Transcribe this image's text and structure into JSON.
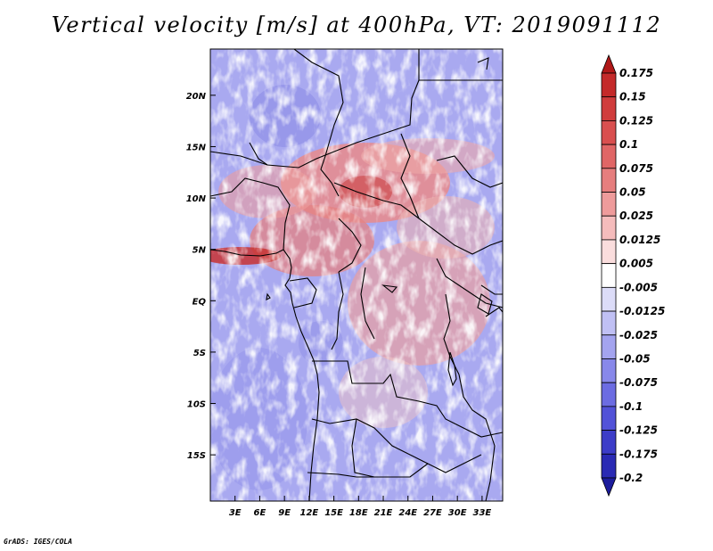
{
  "title": "Vertical velocity [m/s] at 400hPa, VT: 2019091112",
  "credit": "GrADS: IGES/COLA",
  "map": {
    "lon_range": [
      0,
      35.5
    ],
    "lat_range": [
      -19.5,
      24.5
    ],
    "lat_ticks": [
      {
        "value": 20,
        "label": "20N"
      },
      {
        "value": 15,
        "label": "15N"
      },
      {
        "value": 10,
        "label": "10N"
      },
      {
        "value": 5,
        "label": "5N"
      },
      {
        "value": 0,
        "label": "EQ"
      },
      {
        "value": -5,
        "label": "5S"
      },
      {
        "value": -10,
        "label": "10S"
      },
      {
        "value": -15,
        "label": "15S"
      }
    ],
    "lon_ticks": [
      {
        "value": 3,
        "label": "3E"
      },
      {
        "value": 6,
        "label": "6E"
      },
      {
        "value": 9,
        "label": "9E"
      },
      {
        "value": 12,
        "label": "12E"
      },
      {
        "value": 15,
        "label": "15E"
      },
      {
        "value": 18,
        "label": "18E"
      },
      {
        "value": 21,
        "label": "21E"
      },
      {
        "value": 24,
        "label": "24E"
      },
      {
        "value": 27,
        "label": "27E"
      },
      {
        "value": 30,
        "label": "30E"
      },
      {
        "value": 33,
        "label": "33E"
      }
    ]
  },
  "colorbar": {
    "labels": [
      "0.175",
      "0.15",
      "0.125",
      "0.1",
      "0.075",
      "0.05",
      "0.025",
      "0.0125",
      "0.005",
      "-0.005",
      "-0.0125",
      "-0.025",
      "-0.05",
      "-0.075",
      "-0.1",
      "-0.125",
      "-0.175",
      "-0.2"
    ],
    "colors": [
      "#b01818",
      "#c42a2a",
      "#d03c3c",
      "#d94f4f",
      "#e06666",
      "#e67e7e",
      "#ee9b9b",
      "#f5bcbc",
      "#fadddd",
      "#ffffff",
      "#dcdcf8",
      "#c0c0f4",
      "#a4a4ef",
      "#8888ea",
      "#6c6ce2",
      "#5252d8",
      "#3c3cc8",
      "#2a2ab4",
      "#1c1c9c"
    ]
  }
}
